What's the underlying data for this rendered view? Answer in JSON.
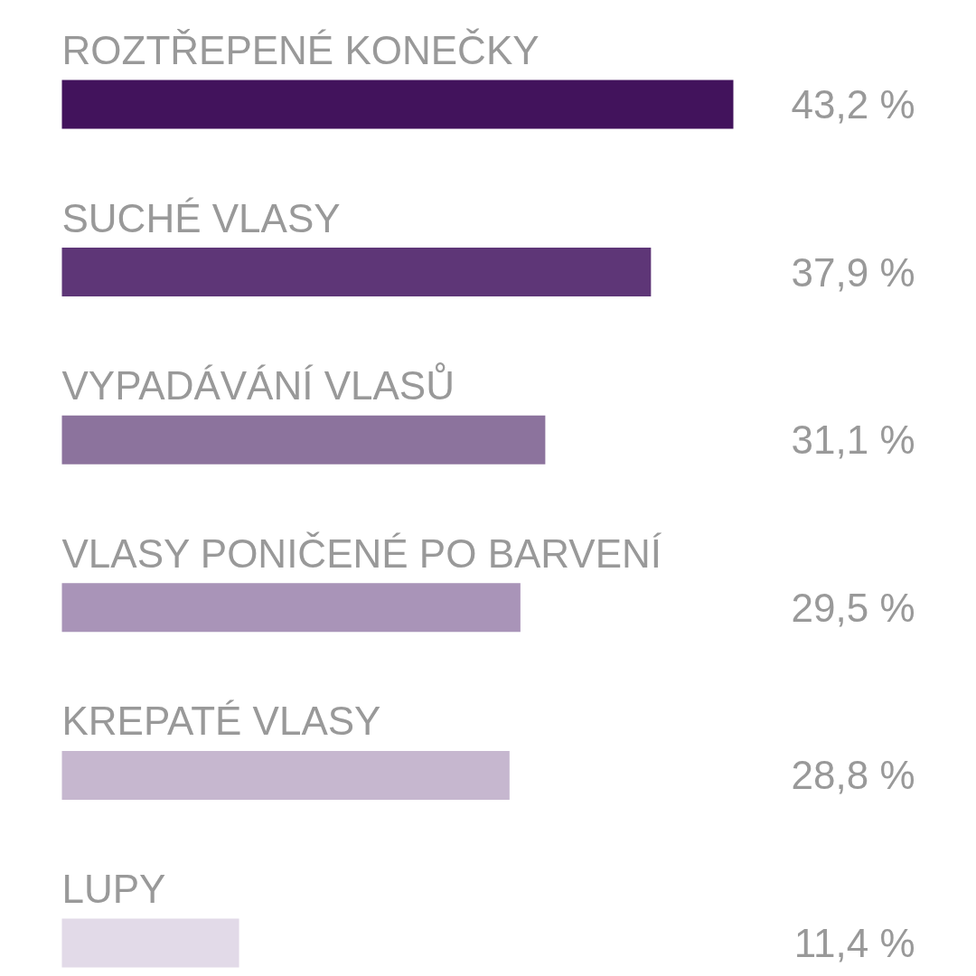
{
  "chart_data": {
    "type": "bar",
    "orientation": "horizontal",
    "categories": [
      "ROZTŘEPENÉ KONEČKY",
      "SUCHÉ VLASY",
      "VYPADÁVÁNÍ VLASŮ",
      "VLASY PONIČENÉ PO BARVENÍ",
      "KREPATÉ VLASY",
      "LUPY"
    ],
    "values": [
      43.2,
      37.9,
      31.1,
      29.5,
      28.8,
      11.4
    ],
    "colors": [
      "#42135c",
      "#5e3677",
      "#8c739d",
      "#a994b8",
      "#c6b7cf",
      "#e2dae8"
    ],
    "value_labels": [
      "43,2 %",
      "37,9 %",
      "31,1 %",
      "29,5 %",
      "28,8 %",
      "11,4 %"
    ]
  }
}
